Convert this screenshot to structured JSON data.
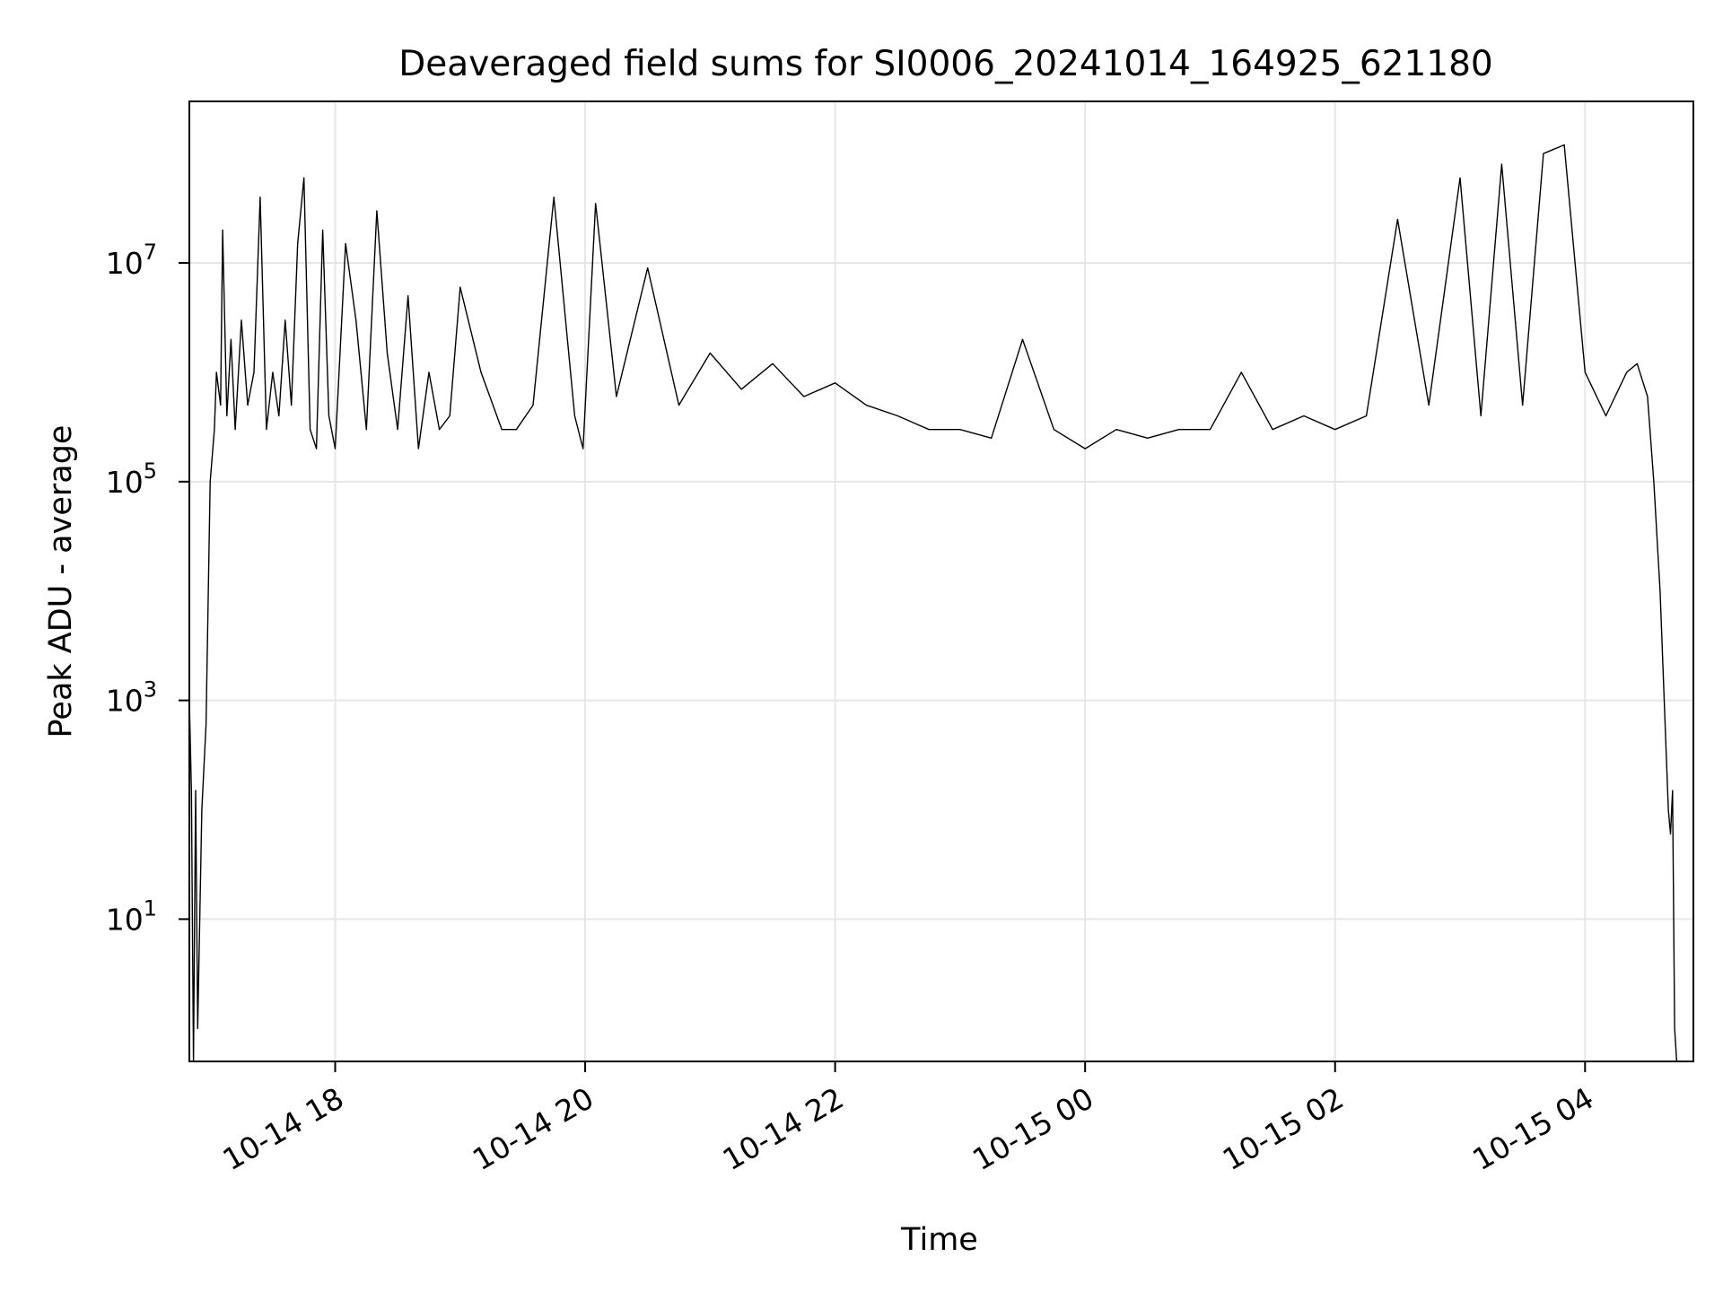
{
  "chart_data": {
    "type": "line",
    "title": "Deaveraged field sums for SI0006_20241014_164925_621180",
    "xlabel": "Time",
    "ylabel": "Peak ADU - average",
    "yscale": "log",
    "ylim": [
      0.5,
      300000000
    ],
    "xlim": [
      "2024-10-14 16:50",
      "2024-10-15 04:52"
    ],
    "grid": true,
    "line_color": "#000000",
    "grid_color": "#e6e6e6",
    "x_ticks": [
      {
        "value": "2024-10-14 18:00",
        "label": "10-14 18"
      },
      {
        "value": "2024-10-14 20:00",
        "label": "10-14 20"
      },
      {
        "value": "2024-10-14 22:00",
        "label": "10-14 22"
      },
      {
        "value": "2024-10-15 00:00",
        "label": "10-15 00"
      },
      {
        "value": "2024-10-15 02:00",
        "label": "10-15 02"
      },
      {
        "value": "2024-10-15 04:00",
        "label": "10-15 04"
      }
    ],
    "y_ticks": [
      {
        "value": 10,
        "base": "10",
        "exp": "1"
      },
      {
        "value": 1000,
        "base": "10",
        "exp": "3"
      },
      {
        "value": 100000,
        "base": "10",
        "exp": "5"
      },
      {
        "value": 10000000,
        "base": "10",
        "exp": "7"
      }
    ],
    "series": [
      {
        "x": [
          "2024-10-14 16:50",
          "2024-10-14 16:51",
          "2024-10-14 16:52",
          "2024-10-14 16:53",
          "2024-10-14 16:54",
          "2024-10-14 16:56",
          "2024-10-14 16:58",
          "2024-10-14 17:00",
          "2024-10-14 17:02",
          "2024-10-14 17:03",
          "2024-10-14 17:05",
          "2024-10-14 17:06",
          "2024-10-14 17:08",
          "2024-10-14 17:10",
          "2024-10-14 17:12",
          "2024-10-14 17:15",
          "2024-10-14 17:18",
          "2024-10-14 17:21",
          "2024-10-14 17:24",
          "2024-10-14 17:27",
          "2024-10-14 17:30",
          "2024-10-14 17:33",
          "2024-10-14 17:36",
          "2024-10-14 17:39",
          "2024-10-14 17:42",
          "2024-10-14 17:45",
          "2024-10-14 17:48",
          "2024-10-14 17:51",
          "2024-10-14 17:54",
          "2024-10-14 17:57",
          "2024-10-14 18:00",
          "2024-10-14 18:05",
          "2024-10-14 18:10",
          "2024-10-14 18:15",
          "2024-10-14 18:20",
          "2024-10-14 18:25",
          "2024-10-14 18:30",
          "2024-10-14 18:35",
          "2024-10-14 18:40",
          "2024-10-14 18:45",
          "2024-10-14 18:50",
          "2024-10-14 18:55",
          "2024-10-14 19:00",
          "2024-10-14 19:10",
          "2024-10-14 19:20",
          "2024-10-14 19:27",
          "2024-10-14 19:35",
          "2024-10-14 19:45",
          "2024-10-14 19:55",
          "2024-10-14 19:59",
          "2024-10-14 20:05",
          "2024-10-14 20:15",
          "2024-10-14 20:30",
          "2024-10-14 20:45",
          "2024-10-14 21:00",
          "2024-10-14 21:15",
          "2024-10-14 21:30",
          "2024-10-14 21:45",
          "2024-10-14 22:00",
          "2024-10-14 22:15",
          "2024-10-14 22:30",
          "2024-10-14 22:45",
          "2024-10-14 23:00",
          "2024-10-14 23:15",
          "2024-10-14 23:30",
          "2024-10-14 23:45",
          "2024-10-15 00:00",
          "2024-10-15 00:15",
          "2024-10-15 00:30",
          "2024-10-15 00:45",
          "2024-10-15 01:00",
          "2024-10-15 01:15",
          "2024-10-15 01:30",
          "2024-10-15 01:45",
          "2024-10-15 02:00",
          "2024-10-15 02:15",
          "2024-10-15 02:30",
          "2024-10-15 02:45",
          "2024-10-15 03:00",
          "2024-10-15 03:10",
          "2024-10-15 03:20",
          "2024-10-15 03:30",
          "2024-10-15 03:40",
          "2024-10-15 03:50",
          "2024-10-15 04:00",
          "2024-10-15 04:10",
          "2024-10-15 04:20",
          "2024-10-15 04:25",
          "2024-10-15 04:30",
          "2024-10-15 04:33",
          "2024-10-15 04:36",
          "2024-10-15 04:38",
          "2024-10-15 04:40",
          "2024-10-15 04:41",
          "2024-10-15 04:42",
          "2024-10-15 04:43",
          "2024-10-15 04:44",
          "2024-10-15 04:45"
        ],
        "y": [
          1000,
          150,
          0.5,
          150,
          1,
          100,
          600,
          100000,
          300000,
          1000000,
          500000,
          20000000,
          400000,
          2000000,
          300000,
          3000000,
          500000,
          1000000,
          40000000,
          300000,
          1000000,
          400000,
          3000000,
          500000,
          15000000,
          60000000,
          300000,
          200000,
          20000000,
          400000,
          200000,
          15000000,
          3000000,
          300000,
          30000000,
          1500000,
          300000,
          5000000,
          200000,
          1000000,
          300000,
          400000,
          6000000,
          1000000,
          300000,
          300000,
          500000,
          40000000,
          400000,
          200000,
          35000000,
          600000,
          9000000,
          500000,
          1500000,
          700000,
          1200000,
          600000,
          800000,
          500000,
          400000,
          300000,
          300000,
          250000,
          2000000,
          300000,
          200000,
          300000,
          250000,
          300000,
          300000,
          1000000,
          300000,
          400000,
          300000,
          400000,
          25000000,
          500000,
          60000000,
          400000,
          80000000,
          500000,
          100000000,
          120000000,
          1000000,
          400000,
          1000000,
          1200000,
          600000,
          100000,
          10000,
          1000,
          100,
          60,
          150,
          1,
          0.5,
          0.5
        ]
      }
    ]
  }
}
